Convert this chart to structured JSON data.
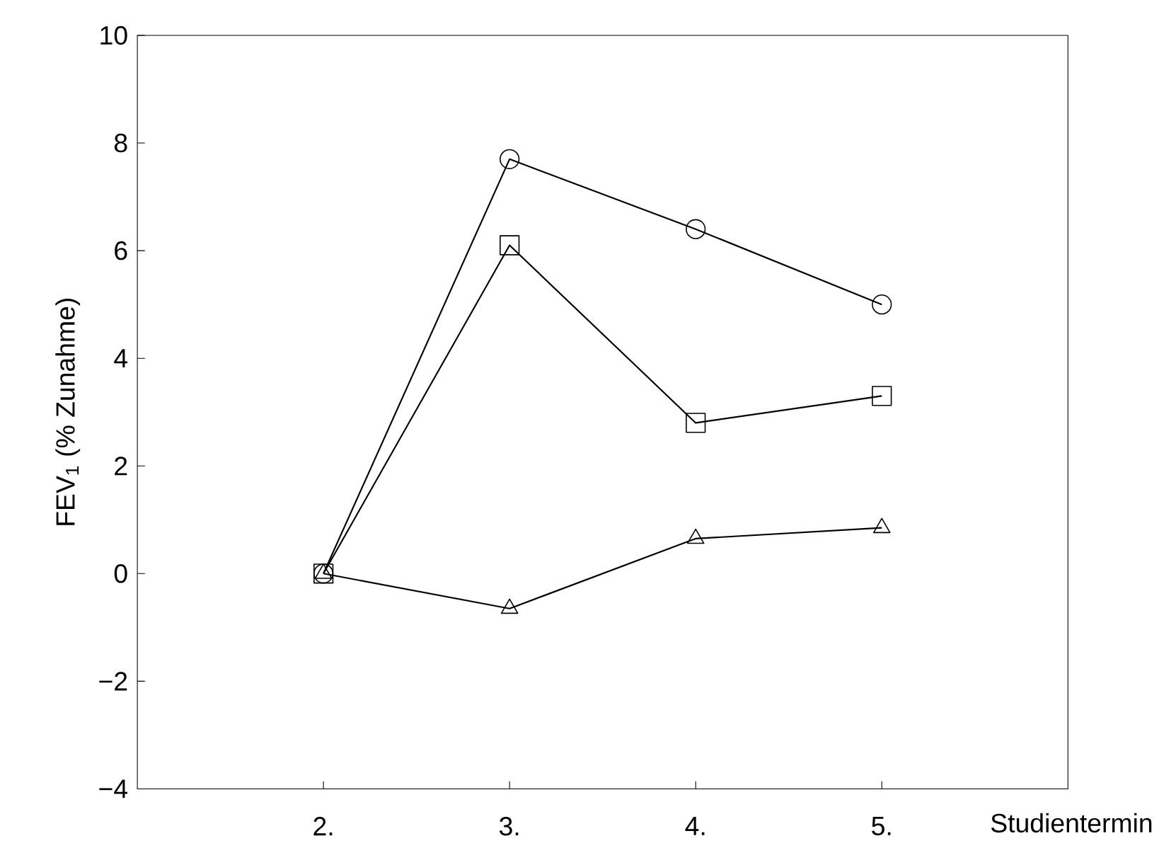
{
  "chart_data": {
    "type": "line",
    "xlabel": "Studientermin",
    "ylabel": "FEV$_{1}$ (% Zunahme)",
    "categories": [
      "2.",
      "3.",
      "4.",
      "5."
    ],
    "series": [
      {
        "color": "#000000",
        "marker": "circle",
        "values": [
          0,
          7.7,
          6.4,
          5.0
        ]
      },
      {
        "color": "#000000",
        "marker": "square",
        "values": [
          0,
          6.1,
          2.8,
          3.3
        ]
      },
      {
        "color": "#000000",
        "marker": "triangle",
        "values": [
          0,
          -0.65,
          0.65,
          0.85
        ]
      }
    ],
    "ylim": [
      -4,
      10
    ],
    "yticks": [
      {
        "value": -4,
        "label": "−4"
      },
      {
        "value": -2,
        "label": "−2"
      },
      0,
      2,
      4,
      6,
      8,
      10
    ],
    "grid": false,
    "line_style": "solid"
  }
}
